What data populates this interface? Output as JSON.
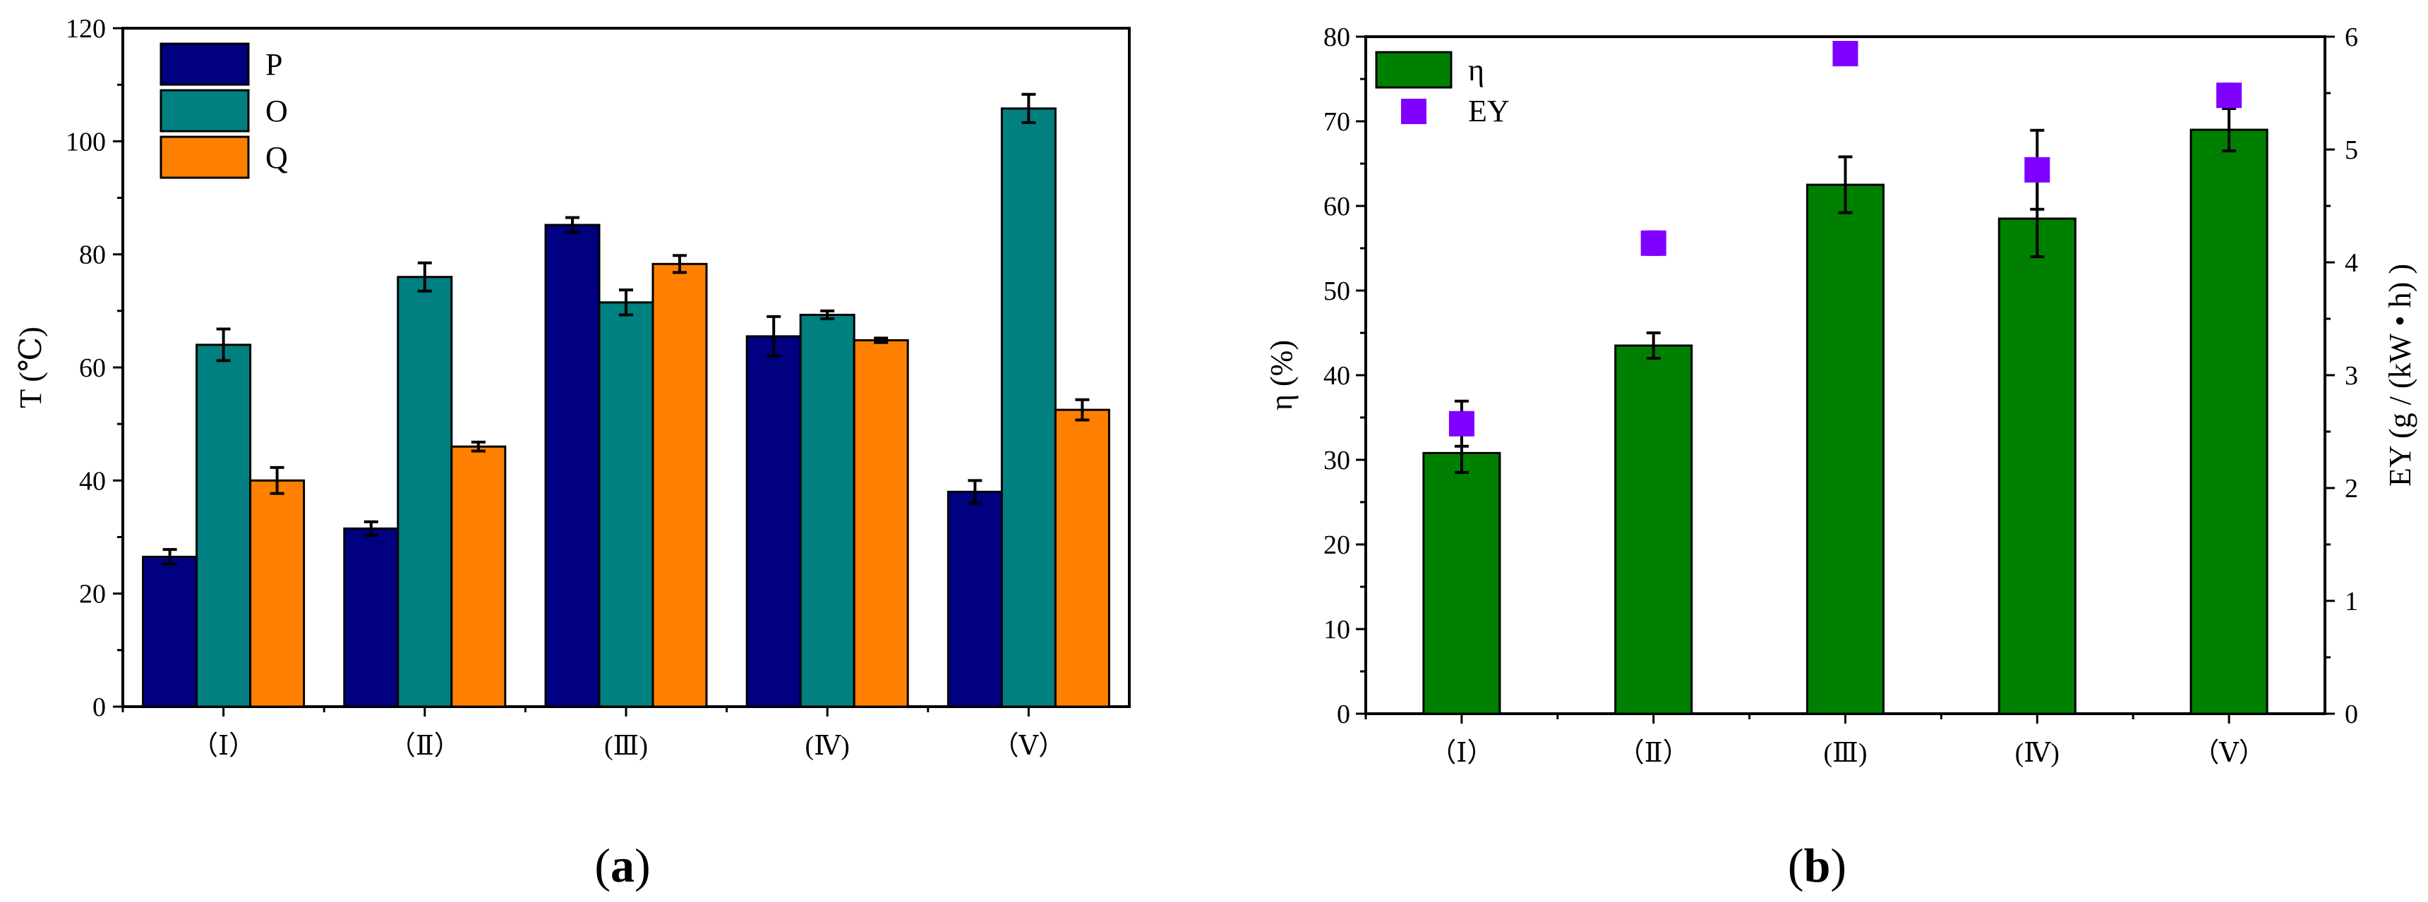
{
  "chart_data": [
    {
      "panel": "a",
      "panel_label": "a",
      "type": "bar",
      "title": "",
      "xlabel": "",
      "ylabel": "T (℃)",
      "ylim": [
        0,
        120
      ],
      "yticks": [
        0,
        20,
        40,
        60,
        80,
        100,
        120
      ],
      "categories": [
        "（Ⅰ）",
        "（Ⅱ）",
        "(Ⅲ)",
        "(Ⅳ)",
        "（Ⅴ）"
      ],
      "legend_position": "top-left",
      "series": [
        {
          "name": "P",
          "color": "#000080",
          "values": [
            26.5,
            31.5,
            85.2,
            65.5,
            38.0
          ],
          "errors": [
            1.3,
            1.2,
            1.3,
            3.5,
            2.0
          ]
        },
        {
          "name": "O",
          "color": "#008080",
          "values": [
            64.0,
            76.0,
            71.5,
            69.3,
            105.8
          ],
          "errors": [
            2.8,
            2.5,
            2.2,
            0.7,
            2.5
          ]
        },
        {
          "name": "Q",
          "color": "#FF8000",
          "values": [
            40.0,
            46.0,
            78.3,
            64.8,
            52.5
          ],
          "errors": [
            2.3,
            0.8,
            1.5,
            0.4,
            1.8
          ]
        }
      ]
    },
    {
      "panel": "b",
      "panel_label": "b",
      "type": "bar+scatter",
      "title": "",
      "xlabel": "",
      "ylabel_left": "η (%)",
      "ylabel_right": "EY (g / (kW • h) )",
      "ylim_left": [
        0,
        80
      ],
      "yticks_left": [
        0,
        10,
        20,
        30,
        40,
        50,
        60,
        70,
        80
      ],
      "ylim_right": [
        0,
        6
      ],
      "yticks_right": [
        0,
        1,
        2,
        3,
        4,
        5,
        6
      ],
      "categories": [
        "（Ⅰ）",
        "（Ⅱ）",
        "(Ⅲ)",
        "(Ⅳ)",
        "（Ⅴ）"
      ],
      "legend_position": "top-left",
      "series": [
        {
          "name": "η",
          "kind": "bar",
          "axis": "left",
          "color": "#008000",
          "values": [
            30.8,
            43.5,
            62.5,
            58.5,
            69.0
          ],
          "errors": [
            2.3,
            1.5,
            3.3,
            4.5,
            2.5
          ]
        },
        {
          "name": "EY",
          "kind": "scatter",
          "axis": "right",
          "color": "#8000FF",
          "values": [
            2.57,
            4.17,
            5.85,
            4.82,
            5.48
          ],
          "errors": [
            0.2,
            0.1,
            0.05,
            0.35,
            0.1
          ]
        }
      ]
    }
  ]
}
